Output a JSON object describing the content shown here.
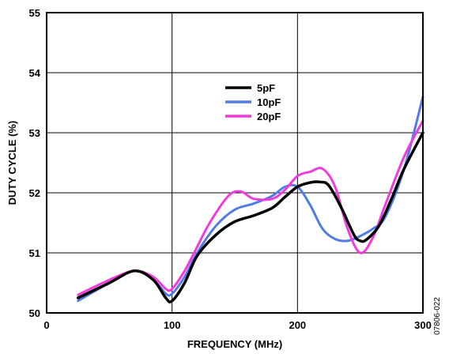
{
  "chart_data": {
    "type": "line",
    "title": "",
    "xlabel": "FREQUENCY (MHz)",
    "ylabel": "DUTY CYCLE (%)",
    "xlim": [
      0,
      300
    ],
    "ylim": [
      50,
      55
    ],
    "x_ticks": [
      0,
      100,
      200,
      300
    ],
    "y_ticks": [
      50,
      51,
      52,
      53,
      54,
      55
    ],
    "grid": true,
    "legend_position": "upper-middle",
    "figure_code": "07806-022",
    "series": [
      {
        "name": "5pF",
        "color": "#000000",
        "x": [
          25,
          50,
          70,
          85,
          95,
          100,
          110,
          120,
          135,
          150,
          165,
          180,
          190,
          200,
          210,
          218,
          225,
          235,
          245,
          250,
          255,
          265,
          275,
          285,
          300
        ],
        "y": [
          50.25,
          50.5,
          50.7,
          50.55,
          50.25,
          50.2,
          50.5,
          50.95,
          51.3,
          51.52,
          51.62,
          51.75,
          51.93,
          52.1,
          52.17,
          52.18,
          52.12,
          51.75,
          51.3,
          51.2,
          51.22,
          51.45,
          51.9,
          52.4,
          53.0
        ]
      },
      {
        "name": "10pF",
        "color": "#4f7ce6",
        "x": [
          25,
          50,
          70,
          85,
          95,
          100,
          110,
          120,
          135,
          150,
          165,
          180,
          190,
          200,
          210,
          220,
          230,
          240,
          250,
          260,
          270,
          285,
          300
        ],
        "y": [
          50.2,
          50.5,
          50.7,
          50.55,
          50.32,
          50.32,
          50.6,
          51.0,
          51.45,
          51.72,
          51.82,
          51.95,
          52.1,
          52.1,
          51.8,
          51.4,
          51.23,
          51.2,
          51.28,
          51.4,
          51.6,
          52.4,
          53.6
        ]
      },
      {
        "name": "20pF",
        "color": "#f03cdc",
        "x": [
          25,
          50,
          70,
          85,
          95,
          100,
          110,
          120,
          130,
          145,
          155,
          165,
          180,
          190,
          200,
          210,
          220,
          230,
          240,
          250,
          260,
          270,
          285,
          300
        ],
        "y": [
          50.3,
          50.55,
          50.7,
          50.6,
          50.4,
          50.4,
          50.7,
          51.1,
          51.5,
          51.95,
          52.02,
          51.9,
          51.9,
          52.05,
          52.28,
          52.35,
          52.4,
          52.1,
          51.4,
          51.0,
          51.25,
          51.8,
          52.6,
          53.2
        ]
      }
    ]
  }
}
